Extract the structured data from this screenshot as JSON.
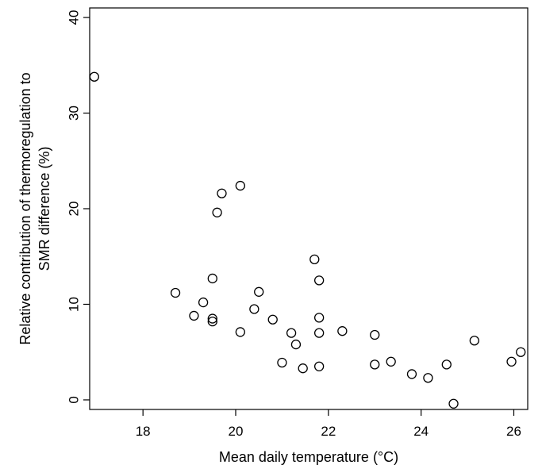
{
  "chart_data": {
    "type": "scatter",
    "xlabel": "Mean daily temperature (°C)",
    "ylabel_lines": [
      "Relative contribution of thermoregulation to",
      "SMR difference (%)"
    ],
    "xlim": [
      16.85,
      26.3
    ],
    "ylim": [
      -1.0,
      41.0
    ],
    "xticks": [
      18,
      20,
      22,
      24,
      26
    ],
    "yticks": [
      0,
      10,
      20,
      30,
      40
    ],
    "grid": false,
    "marker": "open-circle",
    "points": [
      {
        "x": 16.95,
        "y": 33.8
      },
      {
        "x": 18.7,
        "y": 11.2
      },
      {
        "x": 19.1,
        "y": 8.8
      },
      {
        "x": 19.3,
        "y": 10.2
      },
      {
        "x": 19.5,
        "y": 12.7
      },
      {
        "x": 19.5,
        "y": 8.5
      },
      {
        "x": 19.5,
        "y": 8.2
      },
      {
        "x": 19.6,
        "y": 19.6
      },
      {
        "x": 19.7,
        "y": 21.6
      },
      {
        "x": 20.1,
        "y": 22.4
      },
      {
        "x": 20.1,
        "y": 7.1
      },
      {
        "x": 20.4,
        "y": 9.5
      },
      {
        "x": 20.5,
        "y": 11.3
      },
      {
        "x": 20.8,
        "y": 8.4
      },
      {
        "x": 21.0,
        "y": 3.9
      },
      {
        "x": 21.2,
        "y": 7.0
      },
      {
        "x": 21.3,
        "y": 5.8
      },
      {
        "x": 21.45,
        "y": 3.3
      },
      {
        "x": 21.7,
        "y": 14.7
      },
      {
        "x": 21.8,
        "y": 12.5
      },
      {
        "x": 21.8,
        "y": 8.6
      },
      {
        "x": 21.8,
        "y": 7.0
      },
      {
        "x": 21.8,
        "y": 3.5
      },
      {
        "x": 22.3,
        "y": 7.2
      },
      {
        "x": 23.0,
        "y": 6.8
      },
      {
        "x": 23.0,
        "y": 3.7
      },
      {
        "x": 23.35,
        "y": 4.0
      },
      {
        "x": 23.8,
        "y": 2.7
      },
      {
        "x": 24.15,
        "y": 2.3
      },
      {
        "x": 24.55,
        "y": 3.7
      },
      {
        "x": 24.7,
        "y": -0.4
      },
      {
        "x": 25.15,
        "y": 6.2
      },
      {
        "x": 25.95,
        "y": 4.0
      },
      {
        "x": 26.15,
        "y": 5.0
      }
    ]
  }
}
